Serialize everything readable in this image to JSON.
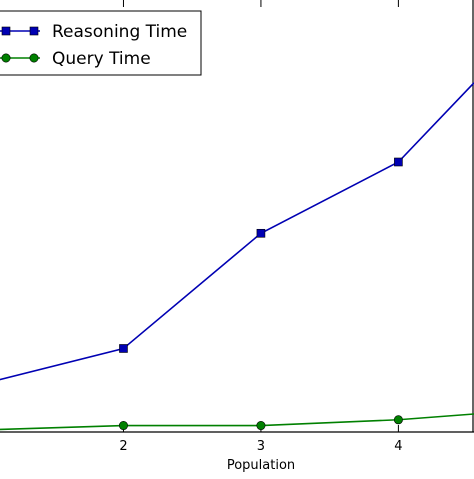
{
  "chart_data": {
    "type": "line",
    "title": "",
    "xlabel": "Population",
    "ylabel": "",
    "xlim": [
      1,
      4.55
    ],
    "ylim": [
      0,
      60
    ],
    "x_ticks": [
      2,
      3,
      4
    ],
    "x_tick_labels": [
      "2",
      "3",
      "4"
    ],
    "grid": false,
    "legend_position": "top-left",
    "series": [
      {
        "name": "Reasoning Time",
        "color": "#0000b3",
        "marker": "square",
        "x": [
          1,
          2,
          3,
          4,
          4.55
        ],
        "y": [
          6.8,
          11.6,
          27.6,
          37.5,
          48.5
        ]
      },
      {
        "name": "Query Time",
        "color": "#008000",
        "marker": "circle",
        "x": [
          1,
          2,
          3,
          4,
          4.55
        ],
        "y": [
          0.3,
          0.9,
          0.9,
          1.7,
          2.5
        ]
      }
    ]
  }
}
